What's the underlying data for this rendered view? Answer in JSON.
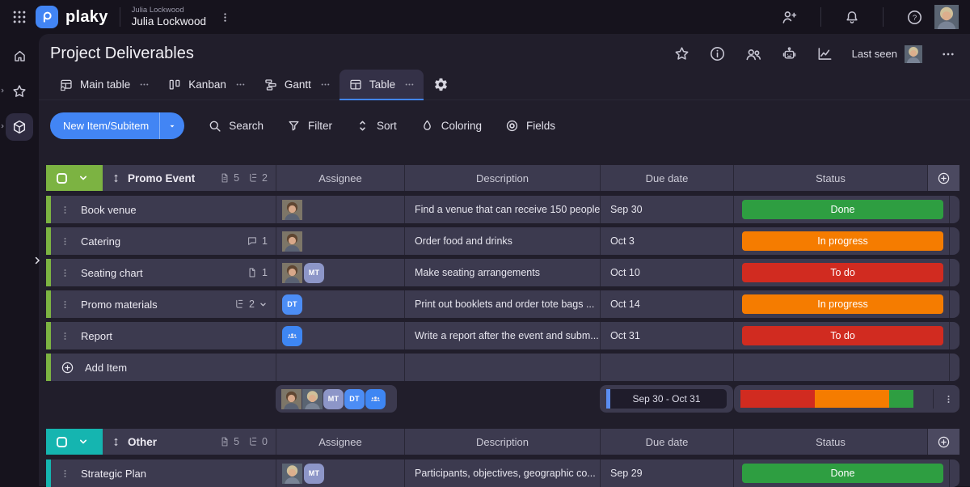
{
  "topbar": {
    "brand": "plaky",
    "workspace_label": "Julia Lockwood",
    "workspace_name": "Julia Lockwood"
  },
  "header": {
    "title": "Project Deliverables",
    "last_seen_label": "Last seen"
  },
  "tabs": [
    {
      "label": "Main table",
      "active": false
    },
    {
      "label": "Kanban",
      "active": false
    },
    {
      "label": "Gantt",
      "active": false
    },
    {
      "label": "Table",
      "active": true
    }
  ],
  "toolbar": {
    "new_item_label": "New Item/Subitem",
    "actions": [
      {
        "label": "Search"
      },
      {
        "label": "Filter"
      },
      {
        "label": "Sort"
      },
      {
        "label": "Coloring"
      },
      {
        "label": "Fields"
      }
    ]
  },
  "table": {
    "columns": [
      "Assignee",
      "Description",
      "Due date",
      "Status"
    ]
  },
  "status_colors": {
    "Done": "#2e9e41",
    "In progress": "#f57c00",
    "To do": "#d12b20"
  },
  "groups": [
    {
      "name": "Promo Event",
      "color": "#7cb342",
      "files_count": "5",
      "subitems_count": "2",
      "add_item_label": "Add Item",
      "rows": [
        {
          "name": "Book venue",
          "assignees": [
            {
              "kind": "photo",
              "variant": "a"
            }
          ],
          "description": "Find a venue that can receive 150 people",
          "due": "Sep 30",
          "status": "Done"
        },
        {
          "name": "Catering",
          "badge": {
            "icon": "comment",
            "count": "1"
          },
          "assignees": [
            {
              "kind": "photo",
              "variant": "a"
            }
          ],
          "description": "Order food and drinks",
          "due": "Oct 3",
          "status": "In progress"
        },
        {
          "name": "Seating chart",
          "badge": {
            "icon": "file",
            "count": "1"
          },
          "assignees": [
            {
              "kind": "photo",
              "variant": "a"
            },
            {
              "kind": "initials",
              "label": "MT",
              "color": "#8d96c8"
            }
          ],
          "description": "Make seating arrangements",
          "due": "Oct 10",
          "status": "To do"
        },
        {
          "name": "Promo materials",
          "badge": {
            "icon": "subitems",
            "count": "2",
            "expandable": true
          },
          "assignees": [
            {
              "kind": "initials",
              "label": "DT",
              "color": "#4c8df5"
            }
          ],
          "description": "Print out booklets and order tote bags ...",
          "due": "Oct 14",
          "status": "In progress"
        },
        {
          "name": "Report",
          "assignees": [
            {
              "kind": "team",
              "color": "#3e86f3"
            }
          ],
          "description": "Write a report after the event and subm...",
          "due": "Oct 31",
          "status": "To do"
        }
      ],
      "summary": {
        "assignees": [
          {
            "kind": "photo",
            "variant": "a"
          },
          {
            "kind": "photo",
            "variant": "b"
          },
          {
            "kind": "initials",
            "label": "MT",
            "color": "#8d96c8"
          },
          {
            "kind": "initials",
            "label": "DT",
            "color": "#4c8df5"
          },
          {
            "kind": "team",
            "color": "#3e86f3"
          }
        ],
        "date_range": "Sep 30 - Oct 31",
        "status_distribution": [
          {
            "status": "To do",
            "color": "#d12b20",
            "percent": 42.9
          },
          {
            "status": "In progress",
            "color": "#f57c00",
            "percent": 42.9
          },
          {
            "status": "Done",
            "color": "#2e9e41",
            "percent": 14.2
          }
        ]
      }
    },
    {
      "name": "Other",
      "color": "#15b5b0",
      "files_count": "5",
      "subitems_count": "0",
      "rows": [
        {
          "name": "Strategic Plan",
          "assignees": [
            {
              "kind": "photo",
              "variant": "b"
            },
            {
              "kind": "initials",
              "label": "MT",
              "color": "#8d96c8"
            }
          ],
          "description": "Participants, objectives, geographic co...",
          "due": "Sep 29",
          "status": "Done"
        }
      ]
    }
  ]
}
